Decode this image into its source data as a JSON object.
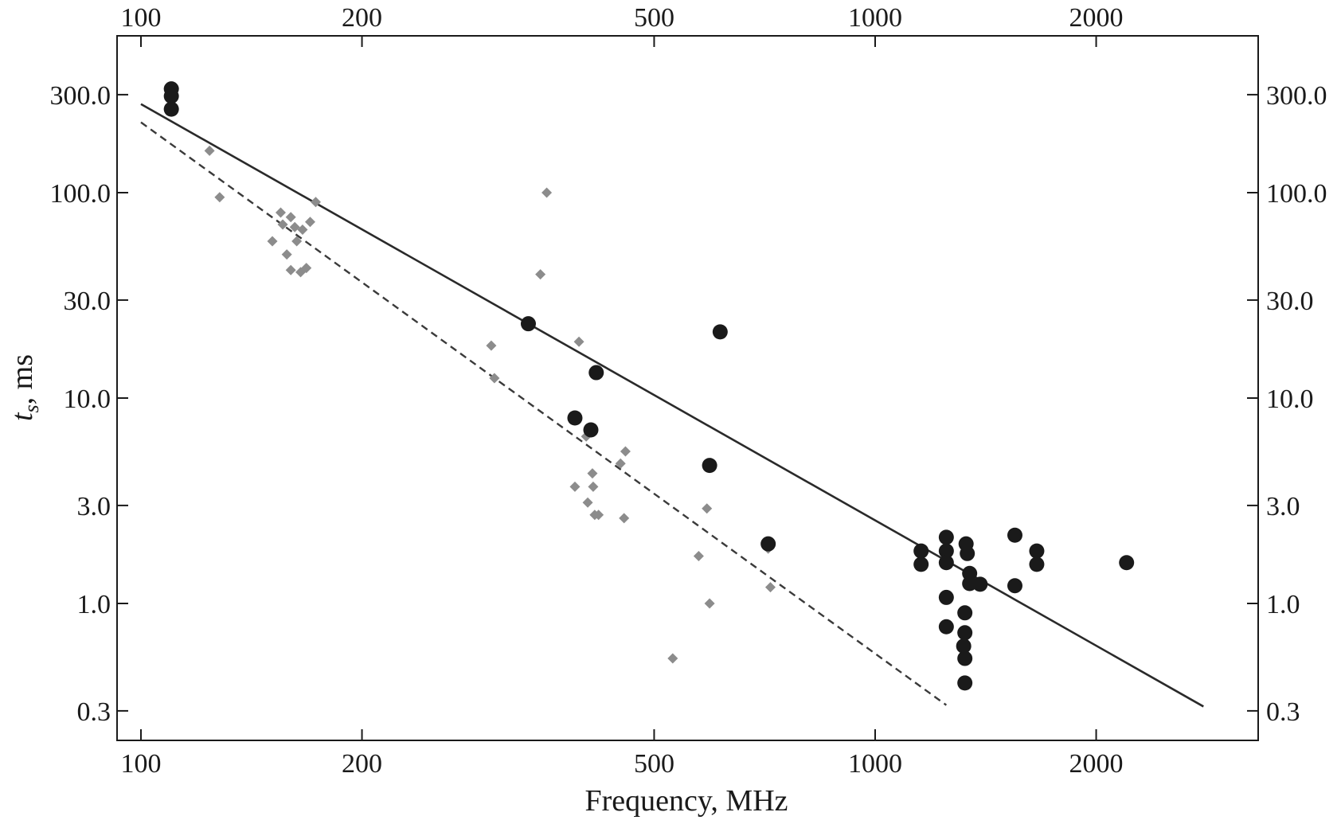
{
  "chart_data": {
    "type": "scatter",
    "title": "",
    "xlabel": "Frequency, MHz",
    "ylabel_main": "t",
    "ylabel_sub": "s",
    "ylabel_rest": ", ms",
    "xscale": "log",
    "yscale": "log",
    "xlim": [
      100,
      3100
    ],
    "ylim": [
      0.19,
      600
    ],
    "grid": false,
    "legend": "none",
    "x_ticks": [
      {
        "value": 100,
        "label": "100"
      },
      {
        "value": 200,
        "label": "200"
      },
      {
        "value": 500,
        "label": "500"
      },
      {
        "value": 1000,
        "label": "1000"
      },
      {
        "value": 2000,
        "label": "2000"
      }
    ],
    "y_ticks": [
      {
        "value": 0.3,
        "label": "0.3"
      },
      {
        "value": 1.0,
        "label": "1.0"
      },
      {
        "value": 3.0,
        "label": "3.0"
      },
      {
        "value": 10.0,
        "label": "10.0"
      },
      {
        "value": 30.0,
        "label": "30.0"
      },
      {
        "value": 100.0,
        "label": "100.0"
      },
      {
        "value": 300.0,
        "label": "300.0"
      }
    ],
    "colors": {
      "circles": "#1a1a1a",
      "diamonds": "#8c8c8c",
      "fit_solid": "#2a2a2a",
      "fit_dashed": "#3a3a3a",
      "frame": "#1a1a1a"
    },
    "series": [
      {
        "marker": "circle",
        "points": [
          [
            110,
            320
          ],
          [
            110,
            295
          ],
          [
            110,
            255
          ],
          [
            337,
            23
          ],
          [
            417,
            13.3
          ],
          [
            390,
            8.0
          ],
          [
            410,
            7.0
          ],
          [
            595,
            4.7
          ],
          [
            615,
            21
          ],
          [
            715,
            1.95
          ],
          [
            1155,
            1.8
          ],
          [
            1155,
            1.55
          ],
          [
            1250,
            2.1
          ],
          [
            1250,
            1.8
          ],
          [
            1250,
            1.58
          ],
          [
            1250,
            1.07
          ],
          [
            1250,
            0.77
          ],
          [
            1330,
            1.95
          ],
          [
            1335,
            1.75
          ],
          [
            1345,
            1.4
          ],
          [
            1345,
            1.25
          ],
          [
            1390,
            1.24
          ],
          [
            1325,
            0.9
          ],
          [
            1325,
            0.72
          ],
          [
            1320,
            0.62
          ],
          [
            1325,
            0.54
          ],
          [
            1325,
            0.41
          ],
          [
            1550,
            2.15
          ],
          [
            1550,
            1.22
          ],
          [
            1660,
            1.8
          ],
          [
            1660,
            1.55
          ],
          [
            2200,
            1.58
          ]
        ]
      },
      {
        "marker": "diamond",
        "points": [
          [
            124,
            160
          ],
          [
            128,
            95
          ],
          [
            155,
            80
          ],
          [
            160,
            76
          ],
          [
            156,
            70
          ],
          [
            162,
            68
          ],
          [
            166,
            66
          ],
          [
            170,
            72
          ],
          [
            151,
            58
          ],
          [
            163,
            58
          ],
          [
            158,
            50
          ],
          [
            160,
            42
          ],
          [
            165,
            41
          ],
          [
            168,
            43
          ],
          [
            173,
            90
          ],
          [
            300,
            18
          ],
          [
            303,
            12.5
          ],
          [
            350,
            40
          ],
          [
            357,
            100
          ],
          [
            395,
            18.8
          ],
          [
            404,
            6.5
          ],
          [
            412,
            4.3
          ],
          [
            413,
            3.7
          ],
          [
            390,
            3.7
          ],
          [
            406,
            3.1
          ],
          [
            415,
            2.7
          ],
          [
            420,
            2.7
          ],
          [
            450,
            4.8
          ],
          [
            457,
            5.5
          ],
          [
            455,
            2.6
          ],
          [
            530,
            0.54
          ],
          [
            575,
            1.7
          ],
          [
            590,
            2.9
          ],
          [
            595,
            1.0
          ],
          [
            715,
            1.85
          ],
          [
            720,
            1.2
          ]
        ]
      }
    ],
    "fits": [
      {
        "style": "solid",
        "points": [
          [
            100,
            270
          ],
          [
            2800,
            0.315
          ]
        ]
      },
      {
        "style": "dashed",
        "points": [
          [
            100,
            220
          ],
          [
            1250,
            0.32
          ]
        ]
      }
    ]
  }
}
